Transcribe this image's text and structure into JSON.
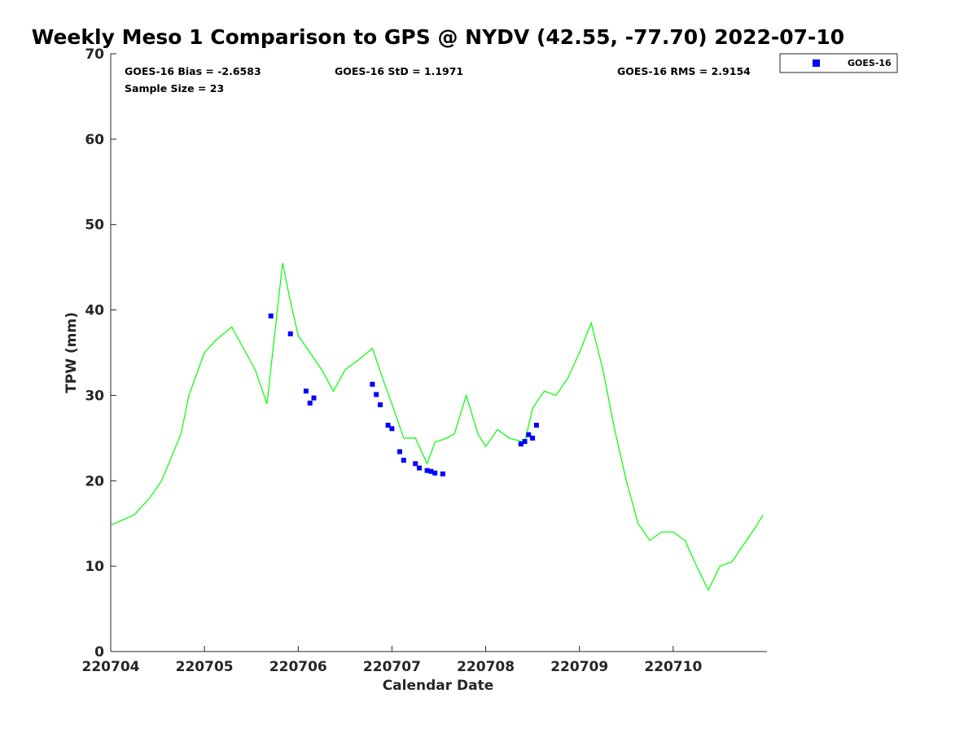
{
  "chart_data": {
    "type": "scatter",
    "title": "Weekly Meso 1 Comparison to GPS @ NYDV (42.55, -77.70) 2022-07-10",
    "xlabel": "Calendar Date",
    "ylabel": "TPW (mm)",
    "ylim": [
      0,
      70
    ],
    "yticks": [
      "0",
      "10",
      "20",
      "30",
      "40",
      "50",
      "60",
      "70"
    ],
    "xticks": [
      "220704",
      "220705",
      "220706",
      "220707",
      "220708",
      "220709",
      "220710"
    ],
    "x_date_start": "220704",
    "x_date_end": "220711",
    "grid": false,
    "legend_position": "top-right",
    "stats": {
      "bias": "GOES-16 Bias = -2.6583",
      "std": "GOES-16 StD = 1.1971",
      "rms": "GOES-16 RMS = 2.9154",
      "sample": "Sample Size = 23"
    },
    "colors": {
      "gps_line": "#00ff00",
      "goes_points": "#0000ff"
    },
    "series": [
      {
        "name": "GPS",
        "kind": "line",
        "x": [
          "220704 00:00",
          "220704 06:00",
          "220704 10:00",
          "220704 13:00",
          "220704 18:00",
          "220704 20:00",
          "220705 00:00",
          "220705 03:00",
          "220705 07:00",
          "220705 10:00",
          "220705 13:00",
          "220705 16:00",
          "220705 20:00",
          "220705 22:00",
          "220706 00:00",
          "220706 03:00",
          "220706 06:00",
          "220706 09:00",
          "220706 12:00",
          "220706 15:00",
          "220706 19:00",
          "220706 22:00",
          "220707 00:00",
          "220707 03:00",
          "220707 06:00",
          "220707 09:00",
          "220707 11:00",
          "220707 14:00",
          "220707 16:00",
          "220707 19:00",
          "220707 22:00",
          "220708 00:00",
          "220708 03:00",
          "220708 06:00",
          "220708 10:00",
          "220708 12:00",
          "220708 15:00",
          "220708 18:00",
          "220708 21:00",
          "220709 00:00",
          "220709 03:00",
          "220709 06:00",
          "220709 09:00",
          "220709 12:00",
          "220709 15:00",
          "220709 18:00",
          "220709 21:00",
          "220710 00:00",
          "220710 03:00",
          "220710 06:00",
          "220710 09:00",
          "220710 12:00",
          "220710 15:00",
          "220710 18:00",
          "220710 21:00",
          "220710 23:00"
        ],
        "y": [
          14.8,
          16,
          18,
          20,
          25.5,
          30,
          35,
          36.5,
          38,
          35.5,
          33,
          29,
          45.5,
          41,
          37,
          35,
          33,
          30.5,
          33,
          34,
          35.5,
          31.5,
          29,
          25,
          25,
          22,
          24.5,
          25,
          25.5,
          30,
          25.5,
          24,
          26,
          25,
          24.5,
          28.5,
          30.5,
          30,
          32,
          35,
          38.5,
          33,
          26,
          20,
          15,
          13,
          14,
          14,
          13,
          10,
          7.2,
          10,
          10.5,
          12.5,
          14.5,
          16
        ]
      },
      {
        "name": "GOES-16",
        "kind": "scatter",
        "x": [
          "220705 17:00",
          "220705 22:00",
          "220706 02:00",
          "220706 03:00",
          "220706 04:00",
          "220706 19:00",
          "220706 20:00",
          "220706 21:00",
          "220706 23:00",
          "220707 00:00",
          "220707 02:00",
          "220707 03:00",
          "220707 06:00",
          "220707 07:00",
          "220707 09:00",
          "220707 10:00",
          "220707 11:00",
          "220707 13:00",
          "220708 09:00",
          "220708 10:00",
          "220708 11:00",
          "220708 12:00",
          "220708 13:00"
        ],
        "y": [
          39.3,
          37.2,
          30.5,
          29.1,
          29.7,
          31.3,
          30.1,
          28.9,
          26.5,
          26.1,
          23.4,
          22.4,
          22,
          21.5,
          21.2,
          21.1,
          20.9,
          20.8,
          24.3,
          24.6,
          25.4,
          25,
          26.5
        ]
      }
    ]
  }
}
